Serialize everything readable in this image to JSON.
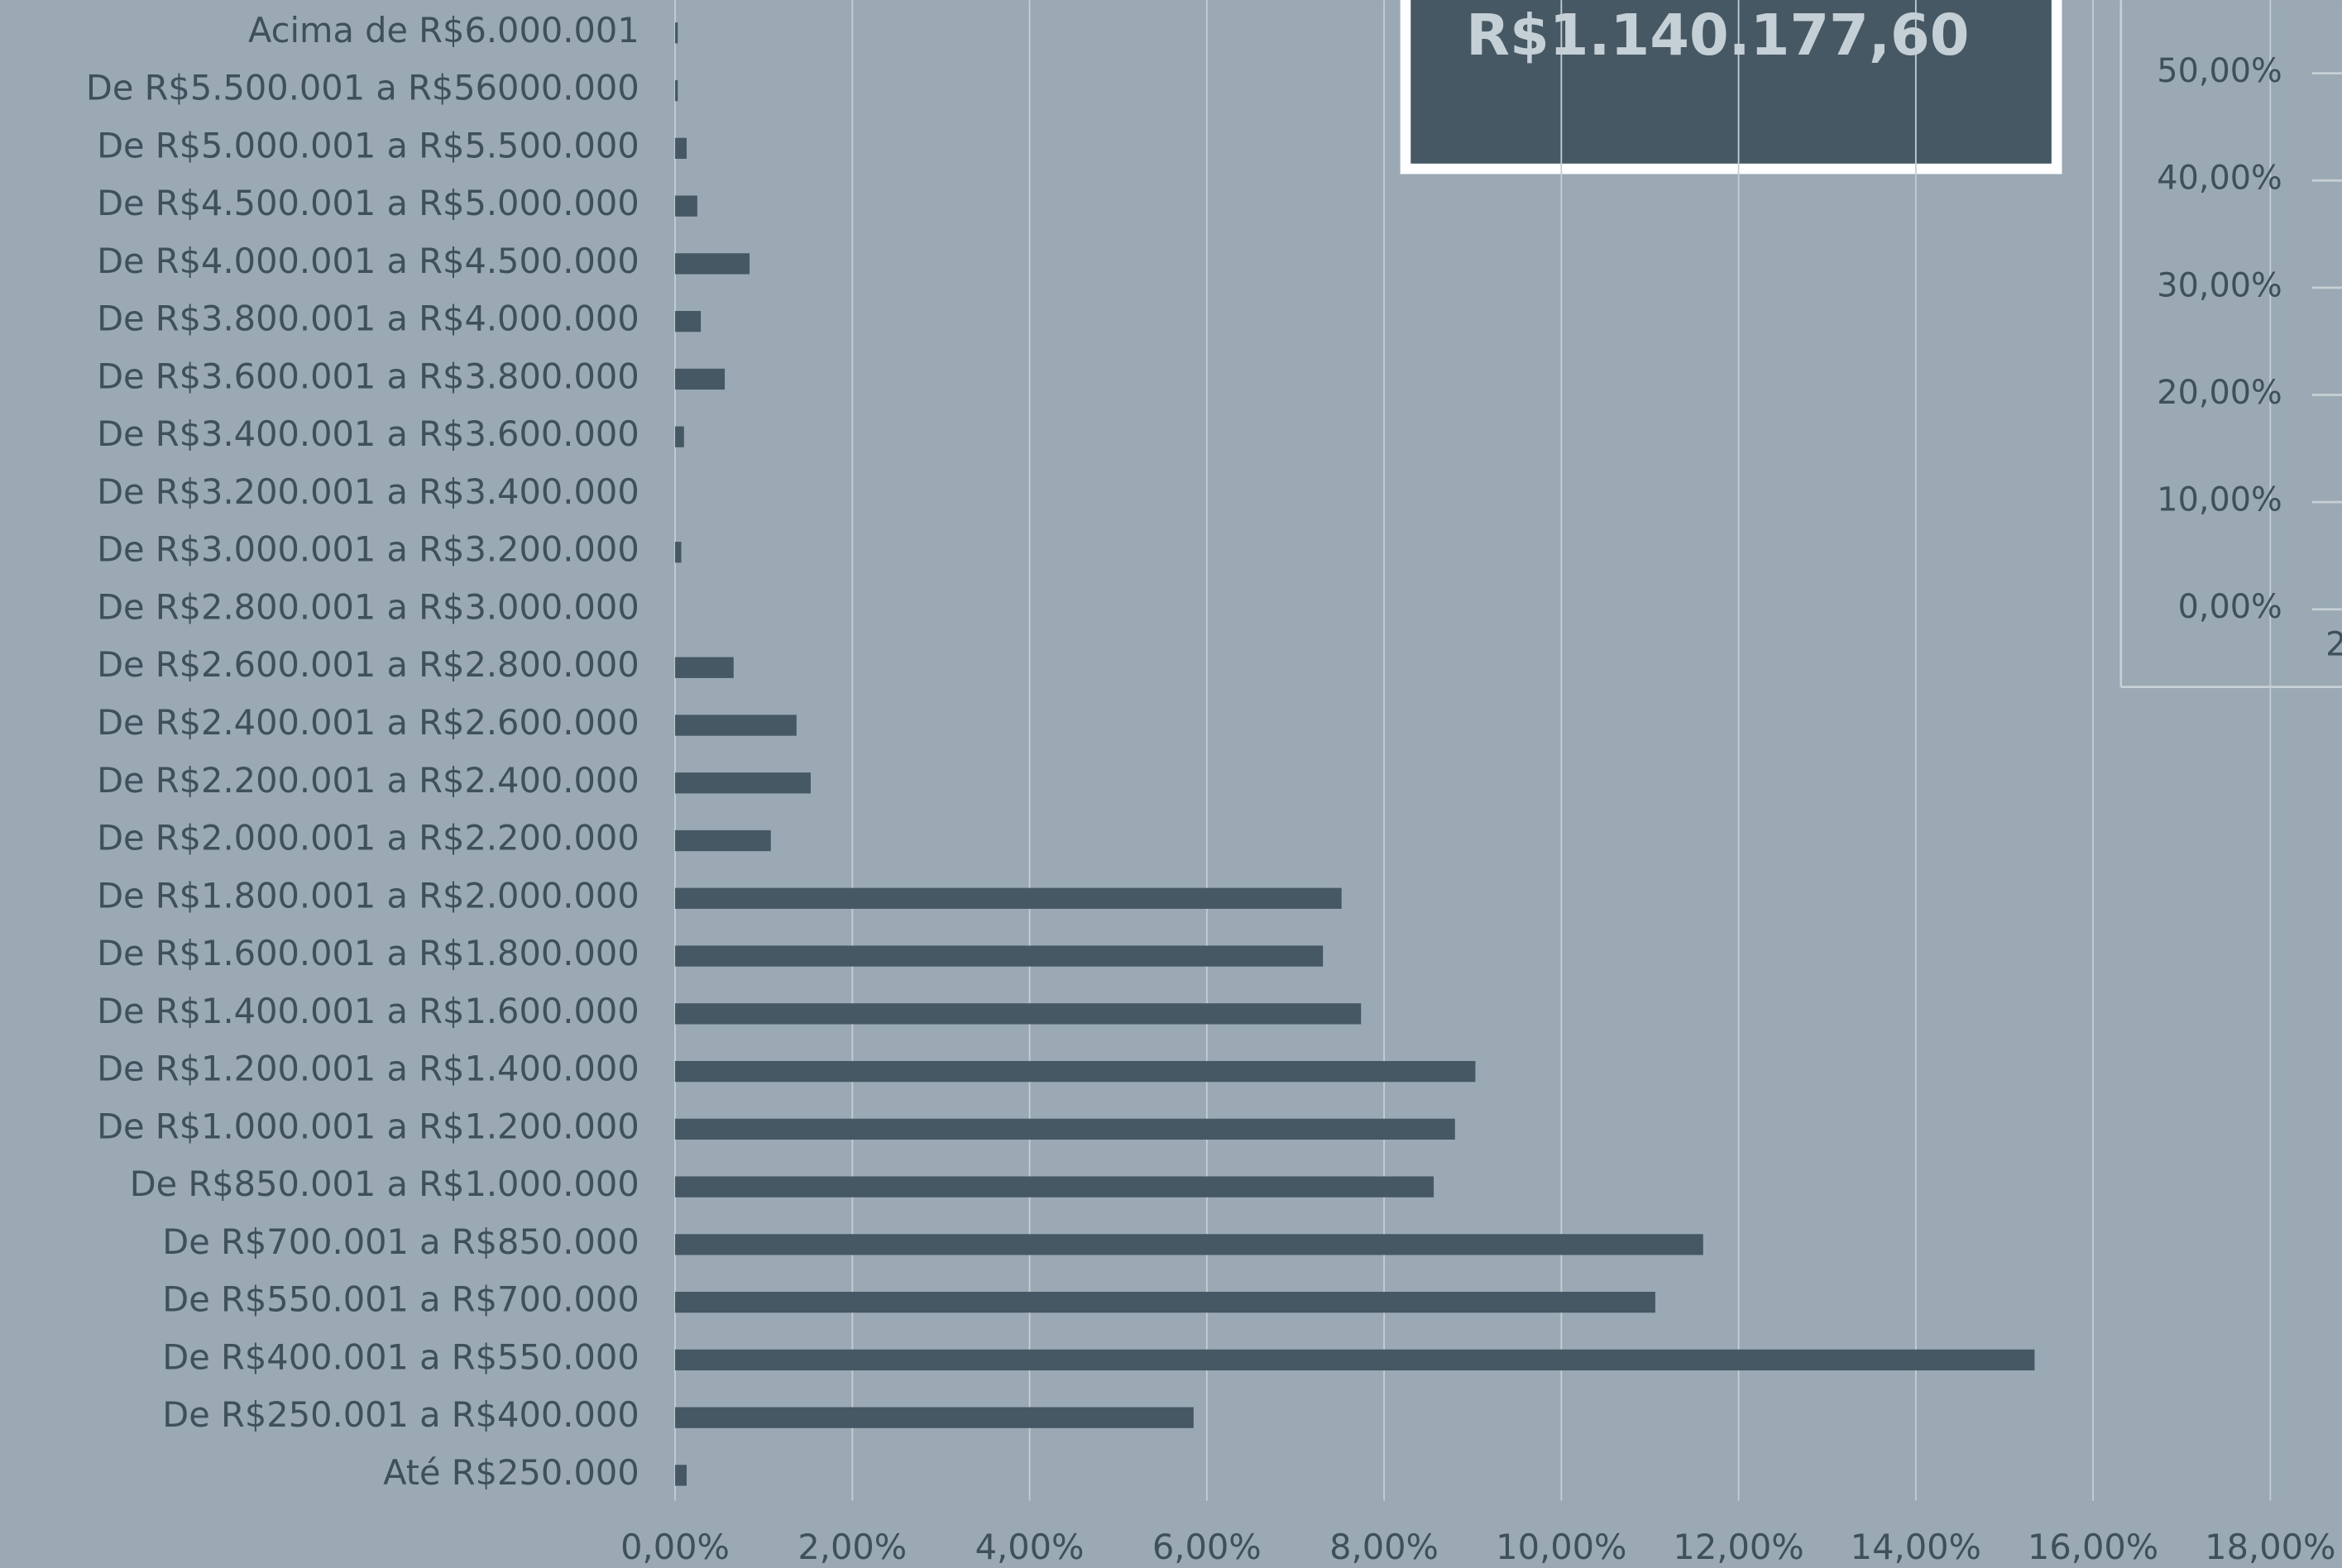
{
  "chart_data": [
    {
      "type": "bar",
      "orientation": "horizontal",
      "color": "#455864",
      "grid": true,
      "categories": [
        "Acima de R$6.000.001",
        "De R$5.500.001 a R$56000.000",
        "De R$5.000.001 a R$5.500.000",
        "De R$4.500.001 a R$5.000.000",
        "De R$4.000.001 a R$4.500.000",
        "De R$3.800.001 a R$4.000.000",
        "De R$3.600.001 a R$3.800.000",
        "De R$3.400.001 a R$3.600.000",
        "De R$3.200.001 a R$3.400.000",
        "De R$3.000.001 a R$3.200.000",
        "De R$2.800.001 a R$3.000.000",
        "De R$2.600.001 a R$2.800.000",
        "De R$2.400.001 a R$2.600.000",
        "De R$2.200.001 a R$2.400.000",
        "De R$2.000.001 a R$2.200.000",
        "De R$1.800.001 a R$2.000.000",
        "De R$1.600.001 a R$1.800.000",
        "De R$1.400.001 a R$1.600.000",
        "De R$1.200.001 a R$1.400.000",
        "De R$1.000.001 a R$1.200.000",
        "De R$850.001 a R$1.000.000",
        "De R$700.001 a R$850.000",
        "De R$550.001 a R$700.000",
        "De R$400.001 a R$550.000",
        "De R$250.001 a R$400.000",
        "Até R$250.000"
      ],
      "values": [
        0.03,
        0.03,
        0.13,
        0.25,
        0.84,
        0.29,
        0.56,
        0.1,
        0,
        0.07,
        0,
        0.66,
        1.37,
        1.53,
        1.08,
        7.52,
        7.31,
        7.74,
        9.03,
        8.8,
        8.56,
        11.6,
        11.06,
        15.34,
        5.85,
        0.13
      ],
      "xlim": [
        0,
        18
      ],
      "xticks": [
        {
          "value": 0,
          "label": "0,00%"
        },
        {
          "value": 2,
          "label": "2,00%"
        },
        {
          "value": 4,
          "label": "4,00%"
        },
        {
          "value": 6,
          "label": "6,00%"
        },
        {
          "value": 8,
          "label": "8,00%"
        },
        {
          "value": 10,
          "label": "10,00%"
        },
        {
          "value": 12,
          "label": "12,00%"
        },
        {
          "value": 14,
          "label": "14,00%"
        },
        {
          "value": 16,
          "label": "16,00%"
        },
        {
          "value": 18,
          "label": "18,00%"
        }
      ]
    },
    {
      "type": "line",
      "categories": [
        "2"
      ],
      "ylim": [
        0,
        50
      ],
      "yticks": [
        {
          "value": 0,
          "label": "0,00%"
        },
        {
          "value": 10,
          "label": "10,00%"
        },
        {
          "value": 20,
          "label": "20,00%"
        },
        {
          "value": 30,
          "label": "30,00%"
        },
        {
          "value": 40,
          "label": "40,00%"
        },
        {
          "value": 50,
          "label": "50,00%"
        }
      ]
    }
  ],
  "highlight": {
    "value_text": "R$1.140.177,60"
  }
}
